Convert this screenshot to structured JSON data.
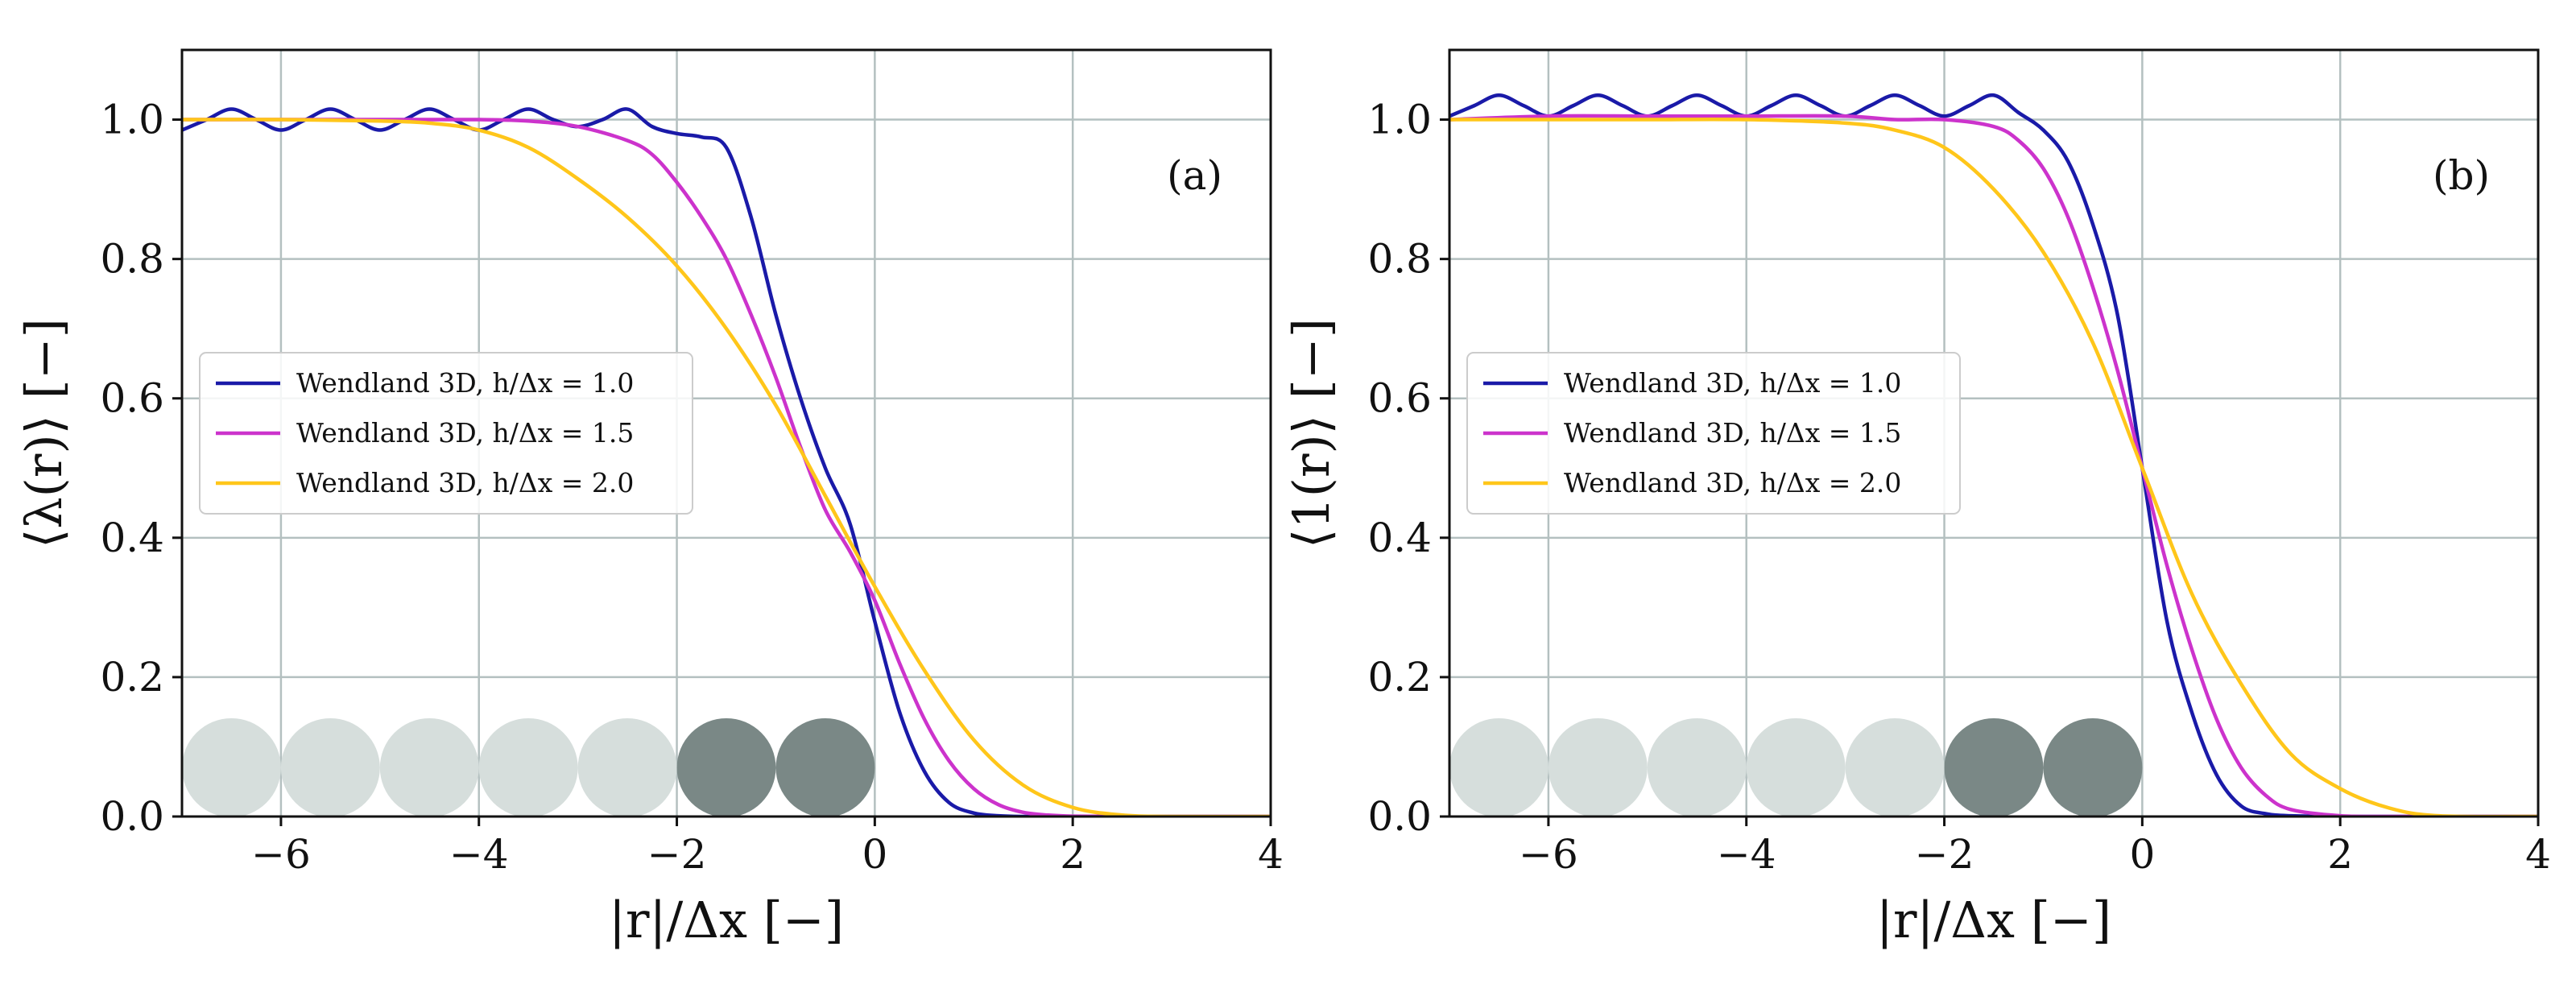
{
  "chart_data": [
    {
      "type": "line",
      "panel_label": "(a)",
      "xlabel": "|r|/Δx [−]",
      "ylabel": "⟨λ(r)⟩ [−]",
      "xlim": [
        -7,
        4
      ],
      "ylim": [
        0,
        1.1
      ],
      "xticks": [
        -6,
        -4,
        -2,
        0,
        2,
        4
      ],
      "xtick_labels": [
        "−6",
        "−4",
        "−2",
        "0",
        "2",
        "4"
      ],
      "yticks": [
        0.0,
        0.2,
        0.4,
        0.6,
        0.8,
        1.0
      ],
      "ytick_labels": [
        "0.0",
        "0.2",
        "0.4",
        "0.6",
        "0.8",
        "1.0"
      ],
      "grid": true,
      "legend_position": "center-left",
      "particles": {
        "light_centers": [
          -6.5,
          -5.5,
          -4.5,
          -3.5,
          -2.5
        ],
        "dark_centers": [
          -1.5,
          -0.5
        ],
        "light_color": "#d6dedc",
        "dark_color": "#7a8886"
      },
      "series": [
        {
          "name": "Wendland 3D, h/Δx = 1.0",
          "color": "#1a1aa8",
          "x": [
            -7,
            -6.75,
            -6.5,
            -6.25,
            -6,
            -5.75,
            -5.5,
            -5.25,
            -5,
            -4.75,
            -4.5,
            -4.25,
            -4,
            -3.75,
            -3.5,
            -3.25,
            -3,
            -2.75,
            -2.5,
            -2.25,
            -2,
            -1.75,
            -1.5,
            -1.25,
            -1,
            -0.75,
            -0.5,
            -0.25,
            0,
            0.25,
            0.5,
            0.75,
            1,
            1.25,
            1.5,
            2,
            3,
            4
          ],
          "y": [
            0.985,
            1.0,
            1.015,
            1.0,
            0.985,
            1.0,
            1.015,
            1.0,
            0.985,
            1.0,
            1.015,
            1.0,
            0.985,
            1.0,
            1.015,
            1.0,
            0.99,
            1.0,
            1.015,
            0.99,
            0.98,
            0.975,
            0.96,
            0.86,
            0.72,
            0.6,
            0.5,
            0.42,
            0.28,
            0.15,
            0.065,
            0.02,
            0.005,
            0.001,
            0,
            0,
            0,
            0
          ]
        },
        {
          "name": "Wendland 3D, h/Δx = 1.5",
          "color": "#cc33cc",
          "x": [
            -7,
            -6,
            -5,
            -4,
            -3.5,
            -3,
            -2.5,
            -2.25,
            -2,
            -1.75,
            -1.5,
            -1.25,
            -1,
            -0.75,
            -0.5,
            -0.25,
            0,
            0.25,
            0.5,
            0.75,
            1,
            1.25,
            1.5,
            1.75,
            2,
            2.5,
            3,
            4
          ],
          "y": [
            1.0,
            1.0,
            1.0,
            1.0,
            0.998,
            0.99,
            0.97,
            0.95,
            0.91,
            0.86,
            0.8,
            0.72,
            0.63,
            0.53,
            0.44,
            0.38,
            0.31,
            0.22,
            0.14,
            0.08,
            0.04,
            0.017,
            0.006,
            0.002,
            0.0005,
            0,
            0,
            0
          ]
        },
        {
          "name": "Wendland 3D, h/Δx = 2.0",
          "color": "#ffc61a",
          "x": [
            -7,
            -6,
            -5,
            -4.5,
            -4,
            -3.5,
            -3,
            -2.5,
            -2,
            -1.5,
            -1,
            -0.5,
            0,
            0.5,
            1,
            1.5,
            2,
            2.5,
            3,
            4
          ],
          "y": [
            1.0,
            1.0,
            0.998,
            0.995,
            0.985,
            0.96,
            0.915,
            0.86,
            0.79,
            0.7,
            0.59,
            0.46,
            0.33,
            0.21,
            0.11,
            0.045,
            0.013,
            0.002,
            0,
            0
          ]
        }
      ]
    },
    {
      "type": "line",
      "panel_label": "(b)",
      "xlabel": "|r|/Δx [−]",
      "ylabel": "⟨1(r)⟩ [−]",
      "xlim": [
        -7,
        4
      ],
      "ylim": [
        0,
        1.1
      ],
      "xticks": [
        -6,
        -4,
        -2,
        0,
        2,
        4
      ],
      "xtick_labels": [
        "−6",
        "−4",
        "−2",
        "0",
        "2",
        "4"
      ],
      "yticks": [
        0.0,
        0.2,
        0.4,
        0.6,
        0.8,
        1.0
      ],
      "ytick_labels": [
        "0.0",
        "0.2",
        "0.4",
        "0.6",
        "0.8",
        "1.0"
      ],
      "grid": true,
      "legend_position": "center-left",
      "particles": {
        "light_centers": [
          -6.5,
          -5.5,
          -4.5,
          -3.5,
          -2.5
        ],
        "dark_centers": [
          -1.5,
          -0.5
        ],
        "light_color": "#d6dedc",
        "dark_color": "#7a8886"
      },
      "series": [
        {
          "name": "Wendland 3D, h/Δx = 1.0",
          "color": "#1a1aa8",
          "x": [
            -7,
            -6.75,
            -6.5,
            -6.25,
            -6,
            -5.75,
            -5.5,
            -5.25,
            -5,
            -4.75,
            -4.5,
            -4.25,
            -4,
            -3.75,
            -3.5,
            -3.25,
            -3,
            -2.75,
            -2.5,
            -2.25,
            -2,
            -1.75,
            -1.5,
            -1.25,
            -1,
            -0.75,
            -0.5,
            -0.25,
            0,
            0.25,
            0.5,
            0.75,
            1,
            1.25,
            1.5,
            2,
            3,
            4
          ],
          "y": [
            1.005,
            1.02,
            1.035,
            1.02,
            1.005,
            1.02,
            1.035,
            1.02,
            1.005,
            1.02,
            1.035,
            1.02,
            1.005,
            1.02,
            1.035,
            1.02,
            1.005,
            1.02,
            1.035,
            1.02,
            1.005,
            1.02,
            1.035,
            1.01,
            0.985,
            0.94,
            0.85,
            0.72,
            0.5,
            0.28,
            0.15,
            0.06,
            0.015,
            0.004,
            0.001,
            0,
            0,
            0
          ]
        },
        {
          "name": "Wendland 3D, h/Δx = 1.5",
          "color": "#cc33cc",
          "x": [
            -7,
            -6,
            -5,
            -4,
            -3,
            -2.5,
            -2,
            -1.5,
            -1.25,
            -1,
            -0.75,
            -0.5,
            -0.25,
            0,
            0.25,
            0.5,
            0.75,
            1,
            1.25,
            1.5,
            2,
            2.5,
            3,
            4
          ],
          "y": [
            1.0,
            1.005,
            1.005,
            1.005,
            1.005,
            1.0,
            1.0,
            0.99,
            0.97,
            0.93,
            0.86,
            0.76,
            0.64,
            0.5,
            0.36,
            0.24,
            0.14,
            0.07,
            0.03,
            0.01,
            0.001,
            0,
            0,
            0
          ]
        },
        {
          "name": "Wendland 3D, h/Δx = 2.0",
          "color": "#ffc61a",
          "x": [
            -7,
            -6,
            -5,
            -4,
            -3,
            -2.5,
            -2,
            -1.5,
            -1,
            -0.5,
            0,
            0.5,
            1,
            1.5,
            2,
            2.5,
            3,
            4
          ],
          "y": [
            1.0,
            1.0,
            1.0,
            1.0,
            0.995,
            0.985,
            0.96,
            0.9,
            0.81,
            0.68,
            0.5,
            0.32,
            0.19,
            0.09,
            0.04,
            0.012,
            0.001,
            0
          ]
        }
      ]
    }
  ]
}
